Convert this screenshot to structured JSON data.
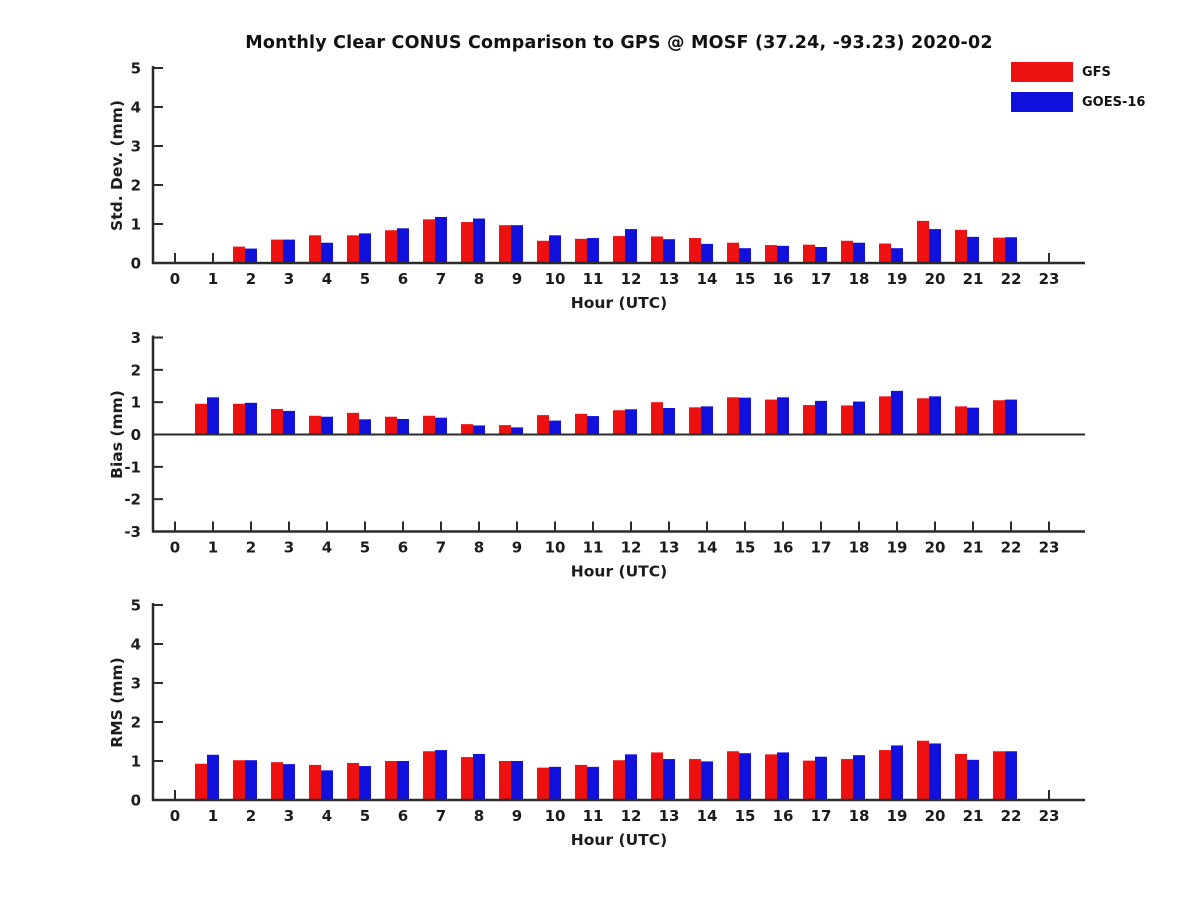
{
  "title": "Monthly Clear CONUS Comparison to GPS @ MOSF (37.24, -93.23) 2020-02",
  "legend": {
    "items": [
      {
        "label": "GFS",
        "color": "#ee1111"
      },
      {
        "label": "GOES-16",
        "color": "#1111dd"
      }
    ]
  },
  "chart_data": [
    {
      "type": "bar",
      "id": "std-dev",
      "ylabel": "Std. Dev. (mm)",
      "xlabel": "Hour (UTC)",
      "ylim": [
        0,
        5
      ],
      "yticks": [
        0,
        1,
        2,
        3,
        4,
        5
      ],
      "grid": false,
      "legend_position": "upper-right-outside",
      "categories": [
        0,
        1,
        2,
        3,
        4,
        5,
        6,
        7,
        8,
        9,
        10,
        11,
        12,
        13,
        14,
        15,
        16,
        17,
        18,
        19,
        20,
        21,
        22,
        23
      ],
      "series": [
        {
          "name": "GFS",
          "color": "#ee1111",
          "values": [
            null,
            null,
            0.42,
            0.6,
            0.71,
            0.71,
            0.84,
            1.12,
            1.05,
            0.97,
            0.57,
            0.62,
            0.69,
            0.68,
            0.64,
            0.52,
            0.46,
            0.47,
            0.57,
            0.5,
            1.08,
            0.85,
            0.65,
            null
          ]
        },
        {
          "name": "GOES-16",
          "color": "#1111dd",
          "values": [
            null,
            null,
            0.37,
            0.6,
            0.52,
            0.76,
            0.89,
            1.18,
            1.14,
            0.97,
            0.71,
            0.64,
            0.87,
            0.61,
            0.49,
            0.38,
            0.44,
            0.41,
            0.52,
            0.38,
            0.87,
            0.67,
            0.66,
            null
          ]
        }
      ]
    },
    {
      "type": "bar",
      "id": "bias",
      "ylabel": "Bias (mm)",
      "xlabel": "Hour (UTC)",
      "ylim": [
        -3,
        3
      ],
      "yticks": [
        -3,
        -2,
        -1,
        0,
        1,
        2,
        3
      ],
      "grid": false,
      "categories": [
        0,
        1,
        2,
        3,
        4,
        5,
        6,
        7,
        8,
        9,
        10,
        11,
        12,
        13,
        14,
        15,
        16,
        17,
        18,
        19,
        20,
        21,
        22,
        23
      ],
      "series": [
        {
          "name": "GFS",
          "color": "#ee1111",
          "values": [
            null,
            0.95,
            0.95,
            0.79,
            0.58,
            0.67,
            0.55,
            0.58,
            0.32,
            0.29,
            0.6,
            0.64,
            0.75,
            1.0,
            0.84,
            1.15,
            1.08,
            0.91,
            0.9,
            1.18,
            1.12,
            0.87,
            1.06,
            null
          ]
        },
        {
          "name": "GOES-16",
          "color": "#1111dd",
          "values": [
            null,
            1.15,
            0.98,
            0.73,
            0.55,
            0.47,
            0.48,
            0.52,
            0.28,
            0.22,
            0.43,
            0.57,
            0.78,
            0.82,
            0.87,
            1.14,
            1.15,
            1.04,
            1.02,
            1.35,
            1.18,
            0.83,
            1.08,
            null
          ]
        }
      ]
    },
    {
      "type": "bar",
      "id": "rms",
      "ylabel": "RMS (mm)",
      "xlabel": "Hour (UTC)",
      "ylim": [
        0,
        5
      ],
      "yticks": [
        0,
        1,
        2,
        3,
        4,
        5
      ],
      "grid": false,
      "categories": [
        0,
        1,
        2,
        3,
        4,
        5,
        6,
        7,
        8,
        9,
        10,
        11,
        12,
        13,
        14,
        15,
        16,
        17,
        18,
        19,
        20,
        21,
        22,
        23
      ],
      "series": [
        {
          "name": "GFS",
          "color": "#ee1111",
          "values": [
            null,
            0.93,
            1.02,
            0.97,
            0.9,
            0.95,
            1.0,
            1.25,
            1.1,
            1.0,
            0.83,
            0.9,
            1.02,
            1.22,
            1.05,
            1.25,
            1.17,
            1.01,
            1.05,
            1.28,
            1.52,
            1.18,
            1.25,
            null
          ]
        },
        {
          "name": "GOES-16",
          "color": "#1111dd",
          "values": [
            null,
            1.16,
            1.02,
            0.92,
            0.76,
            0.87,
            1.0,
            1.28,
            1.18,
            1.0,
            0.85,
            0.85,
            1.17,
            1.05,
            0.99,
            1.2,
            1.22,
            1.11,
            1.15,
            1.4,
            1.45,
            1.03,
            1.25,
            null
          ]
        }
      ]
    }
  ]
}
